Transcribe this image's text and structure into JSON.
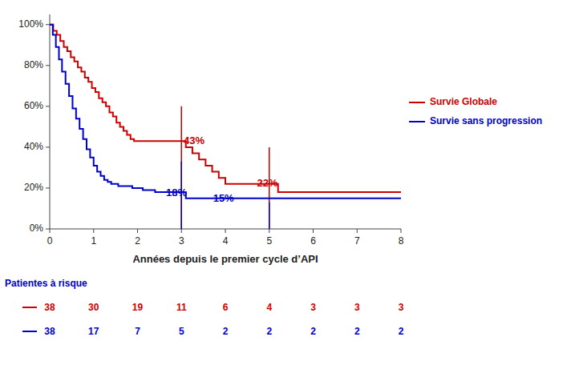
{
  "chart_data": {
    "type": "step",
    "xlabel": "Années depuis le premier cycle d’API",
    "xlim": [
      0,
      8
    ],
    "ylim": [
      0,
      1.05
    ],
    "xticks": [
      0,
      1,
      2,
      3,
      4,
      5,
      6,
      7,
      8
    ],
    "yticks": [
      {
        "value": 0.0,
        "label": "0%"
      },
      {
        "value": 0.2,
        "label": "20%"
      },
      {
        "value": 0.4,
        "label": "40%"
      },
      {
        "value": 0.6,
        "label": "60%"
      },
      {
        "value": 0.8,
        "label": "80%"
      },
      {
        "value": 1.0,
        "label": "100%"
      }
    ],
    "legend": "right",
    "series": [
      {
        "name": "Survie Globale",
        "color": "#CC0000",
        "x": [
          0.0,
          0.08,
          0.16,
          0.24,
          0.32,
          0.4,
          0.48,
          0.56,
          0.64,
          0.72,
          0.8,
          0.88,
          0.96,
          1.04,
          1.12,
          1.2,
          1.28,
          1.36,
          1.44,
          1.52,
          1.6,
          1.68,
          1.76,
          1.84,
          1.92,
          2.0,
          2.08,
          2.16,
          2.24,
          2.32,
          2.4,
          2.5,
          2.6,
          2.7,
          2.8,
          2.9,
          3.0,
          3.1,
          3.25,
          3.4,
          3.55,
          3.7,
          3.85,
          4.0,
          4.15,
          4.3,
          4.5,
          4.7,
          4.9,
          5.0,
          5.2,
          8.0
        ],
        "values": [
          1.0,
          0.97,
          0.95,
          0.92,
          0.89,
          0.87,
          0.84,
          0.82,
          0.79,
          0.77,
          0.74,
          0.72,
          0.69,
          0.67,
          0.64,
          0.62,
          0.6,
          0.57,
          0.55,
          0.52,
          0.5,
          0.48,
          0.46,
          0.44,
          0.43,
          0.43,
          0.43,
          0.43,
          0.43,
          0.43,
          0.43,
          0.43,
          0.43,
          0.43,
          0.43,
          0.43,
          0.43,
          0.4,
          0.37,
          0.34,
          0.31,
          0.28,
          0.25,
          0.22,
          0.22,
          0.22,
          0.22,
          0.22,
          0.22,
          0.22,
          0.18,
          0.18
        ],
        "at_risk": [
          38,
          30,
          19,
          11,
          6,
          4,
          3,
          3,
          3
        ]
      },
      {
        "name": "Survie sans progression",
        "color": "#0000CC",
        "x": [
          0.0,
          0.07,
          0.14,
          0.21,
          0.28,
          0.36,
          0.44,
          0.52,
          0.6,
          0.68,
          0.76,
          0.84,
          0.92,
          1.0,
          1.08,
          1.16,
          1.24,
          1.32,
          1.4,
          1.48,
          1.56,
          1.64,
          1.72,
          1.8,
          1.88,
          1.96,
          2.04,
          2.12,
          2.2,
          2.3,
          2.4,
          2.5,
          2.6,
          2.7,
          2.8,
          2.9,
          3.0,
          3.1,
          8.0
        ],
        "values": [
          1.0,
          0.95,
          0.89,
          0.83,
          0.77,
          0.71,
          0.65,
          0.59,
          0.54,
          0.49,
          0.44,
          0.39,
          0.35,
          0.31,
          0.28,
          0.26,
          0.24,
          0.23,
          0.22,
          0.22,
          0.21,
          0.21,
          0.21,
          0.21,
          0.2,
          0.2,
          0.2,
          0.19,
          0.19,
          0.19,
          0.18,
          0.18,
          0.18,
          0.18,
          0.18,
          0.18,
          0.18,
          0.15,
          0.15
        ],
        "at_risk": [
          38,
          17,
          7,
          5,
          2,
          2,
          2,
          2,
          2
        ]
      }
    ],
    "vlines": [
      {
        "x": 3.0,
        "y_top": 0.6,
        "color": "#CC0000"
      },
      {
        "x": 5.0,
        "y_top": 0.4,
        "color": "#CC0000"
      },
      {
        "x": 3.0,
        "y_top": 0.33,
        "color": "#0000CC"
      },
      {
        "x": 5.0,
        "y_top": 0.13,
        "color": "#0000CC"
      }
    ],
    "annotations": [
      {
        "text": "43%",
        "x": 3.05,
        "y": 0.43,
        "color": "#CC0000"
      },
      {
        "text": "22%",
        "x": 4.72,
        "y": 0.22,
        "color": "#CC0000"
      },
      {
        "text": "18%",
        "x": 2.65,
        "y": 0.175,
        "color": "#0000CC"
      },
      {
        "text": "15%",
        "x": 3.72,
        "y": 0.145,
        "color": "#0000CC"
      }
    ],
    "risk_table_title": "Patientes à risque"
  }
}
